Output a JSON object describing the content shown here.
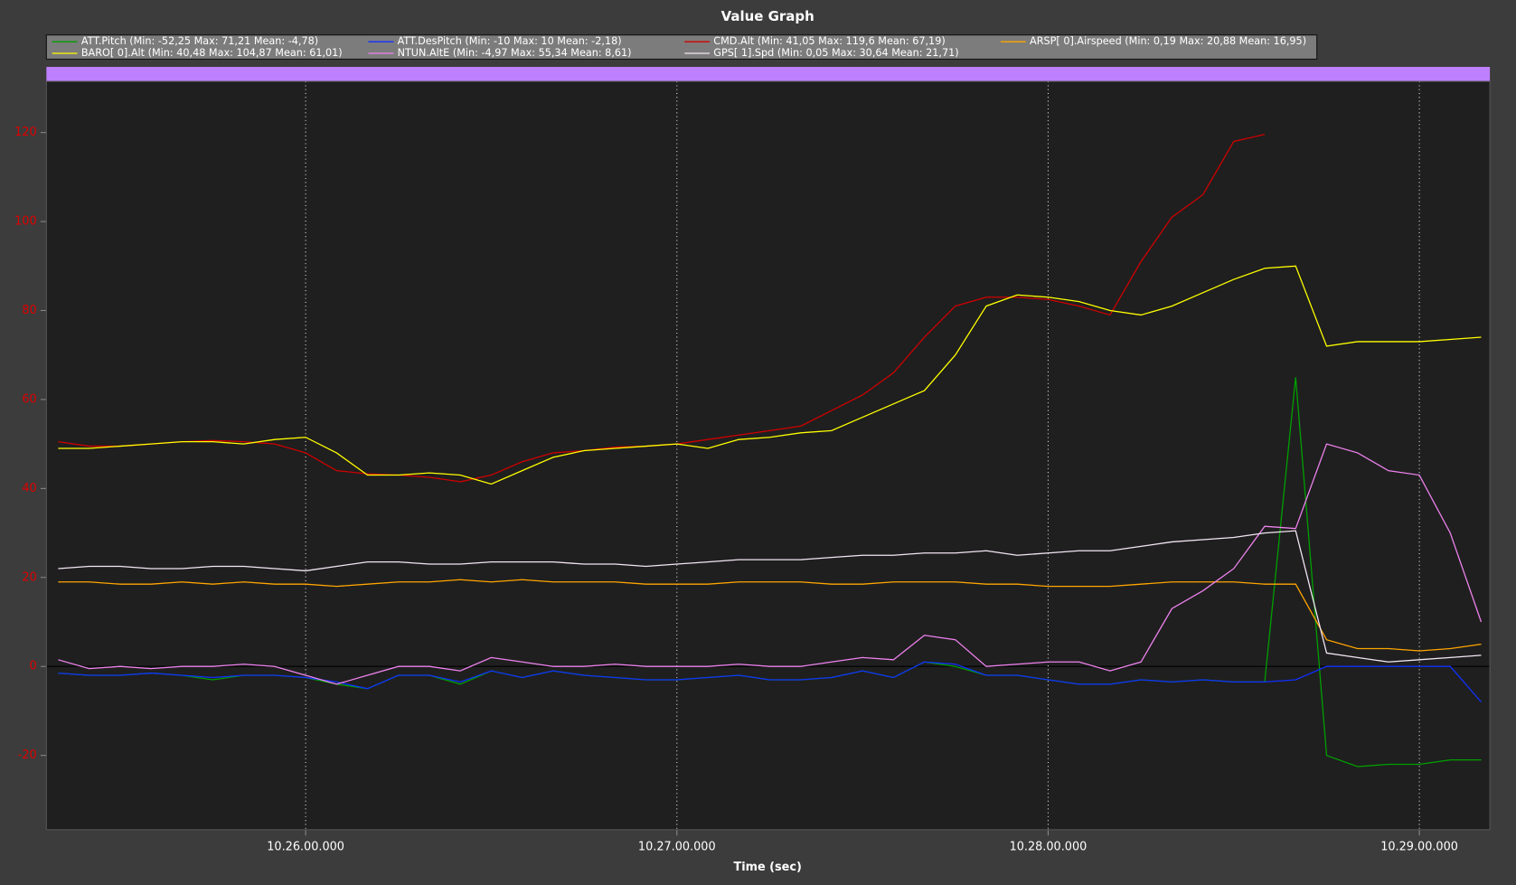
{
  "chart_data": {
    "type": "line",
    "title": "Value Graph",
    "x_label": "Time (sec)",
    "x": [
      37520,
      37525,
      37530,
      37535,
      37540,
      37545,
      37550,
      37555,
      37560,
      37565,
      37570,
      37575,
      37580,
      37585,
      37590,
      37595,
      37600,
      37605,
      37610,
      37615,
      37620,
      37625,
      37630,
      37635,
      37640,
      37645,
      37650,
      37655,
      37660,
      37665,
      37670,
      37675,
      37680,
      37685,
      37690,
      37695,
      37700,
      37705,
      37710,
      37715,
      37720,
      37725,
      37730,
      37735,
      37740,
      37745,
      37750
    ],
    "xlim": [
      37518.1,
      37751.4
    ],
    "xticks": [
      {
        "value": 37560,
        "label": "10.26.00.000"
      },
      {
        "value": 37620,
        "label": "10.27.00.000"
      },
      {
        "value": 37680,
        "label": "10.28.00.000"
      },
      {
        "value": 37740,
        "label": "10.29.00.000"
      }
    ],
    "ylim": [
      -36.7,
      131.5
    ],
    "yticks": [
      -20,
      0,
      20,
      40,
      60,
      80,
      100,
      120
    ],
    "grid": true,
    "series": [
      {
        "name": "ATT.Pitch  (Min: -52,25 Max: 71,21 Mean: -4,78)",
        "color": "#00a000",
        "values": [
          -1.5,
          -2,
          -2,
          -1.5,
          -2,
          -3,
          -2,
          -2,
          -2.5,
          -4,
          -5,
          -2,
          -2,
          -4,
          -1,
          -2.5,
          -1,
          -2,
          -2.5,
          -3,
          -3,
          -2.5,
          -2,
          -3,
          -3,
          -2.5,
          -1,
          -2.5,
          1,
          0,
          -2,
          -2,
          -3,
          -4,
          -4,
          -3,
          -3.5,
          -3,
          -3.5,
          -3.5,
          65,
          -20,
          -22.5,
          -22,
          -22,
          -21,
          -21
        ]
      },
      {
        "name": "ATT.DesPitch  (Min: -10 Max: 10 Mean: -2,18)",
        "color": "#1030ff",
        "values": [
          -1.5,
          -2,
          -2,
          -1.5,
          -2,
          -2.5,
          -2,
          -2,
          -2.5,
          -3.5,
          -5,
          -2,
          -2,
          -3.5,
          -1,
          -2.5,
          -1,
          -2,
          -2.5,
          -3,
          -3,
          -2.5,
          -2,
          -3,
          -3,
          -2.5,
          -1,
          -2.5,
          1,
          0.5,
          -2,
          -2,
          -3,
          -4,
          -4,
          -3,
          -3.5,
          -3,
          -3.5,
          -3.5,
          -3,
          0,
          0,
          0,
          0,
          0,
          -8
        ]
      },
      {
        "name": "CMD.Alt  (Min: 41,05 Max: 119,6 Mean: 67,19)",
        "color": "#d00000",
        "values": [
          50.5,
          49.5,
          49.5,
          50,
          50.5,
          50.8,
          50.5,
          50,
          48,
          44,
          43.3,
          43,
          42.5,
          41.5,
          43,
          46,
          48,
          48.5,
          49.3,
          49.5,
          50,
          51,
          52,
          53,
          54,
          57.5,
          61,
          66,
          74,
          81,
          83,
          83,
          82.5,
          81,
          79,
          91,
          101,
          106,
          118,
          119.6,
          null,
          null,
          null,
          null,
          null,
          null,
          null
        ]
      },
      {
        "name": "ARSP[ 0].Airspeed  (Min: 0,19 Max: 20,88 Mean: 16,95)",
        "color": "#ffa500",
        "values": [
          19,
          19,
          18.5,
          18.5,
          19,
          18.5,
          19,
          18.5,
          18.5,
          18,
          18.5,
          19,
          19,
          19.5,
          19,
          19.5,
          19,
          19,
          19,
          18.5,
          18.5,
          18.5,
          19,
          19,
          19,
          18.5,
          18.5,
          19,
          19,
          19,
          18.5,
          18.5,
          18,
          18,
          18,
          18.5,
          19,
          19,
          19,
          18.5,
          18.5,
          6,
          4,
          4,
          3.5,
          4,
          5
        ]
      },
      {
        "name": "BARO[ 0].Alt  (Min: 40,48 Max: 104,87 Mean: 61,01)",
        "color": "#ffff00",
        "values": [
          49,
          49,
          49.5,
          50,
          50.5,
          50.5,
          50,
          51,
          51.5,
          48,
          43,
          43,
          43.5,
          43,
          41,
          44,
          47,
          48.5,
          49,
          49.5,
          50,
          49,
          51,
          51.5,
          52.5,
          53,
          56,
          59,
          62,
          70,
          81,
          83.5,
          83,
          82,
          80,
          79,
          81,
          84,
          87,
          89.5,
          90,
          72,
          73,
          73,
          73,
          73.5,
          74
        ]
      },
      {
        "name": "NTUN.AltE  (Min: -4,97 Max: 55,34 Mean: 8,61)",
        "color": "#ee82ee",
        "values": [
          1.5,
          -0.5,
          0,
          -0.5,
          0,
          0,
          0.5,
          0,
          -2,
          -4,
          -2,
          0,
          0,
          -1,
          2,
          1,
          0,
          0,
          0.5,
          0,
          0,
          0,
          0.5,
          0,
          0,
          1,
          2,
          1.5,
          7,
          6,
          0,
          0.5,
          1,
          1,
          -1,
          1,
          13,
          17,
          22,
          31.5,
          31,
          50,
          48,
          44,
          43,
          30,
          10
        ]
      },
      {
        "name": "GPS[ 1].Spd  (Min: 0,05 Max: 30,64 Mean: 21,71)",
        "color": "#f4e6f4",
        "values": [
          22,
          22.5,
          22.5,
          22,
          22,
          22.5,
          22.5,
          22,
          21.5,
          22.5,
          23.5,
          23.5,
          23,
          23,
          23.5,
          23.5,
          23.5,
          23,
          23,
          22.5,
          23,
          23.5,
          24,
          24,
          24,
          24.5,
          25,
          25,
          25.5,
          25.5,
          26,
          25,
          25.5,
          26,
          26,
          27,
          28,
          28.5,
          29,
          30,
          30.5,
          3,
          2,
          1,
          1.5,
          2,
          2.5
        ]
      }
    ]
  }
}
